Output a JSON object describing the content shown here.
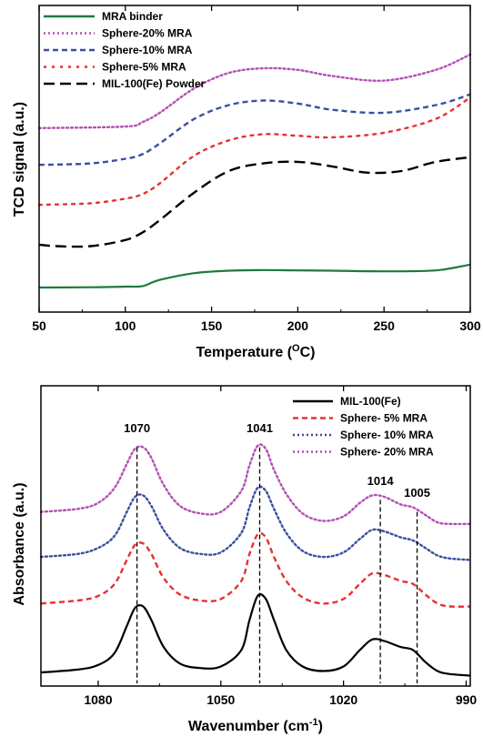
{
  "chart_data": [
    {
      "type": "line",
      "xlabel": "Temperature (",
      "xlabel_sup": "O",
      "xlabel_suffix": "C)",
      "ylabel": "TCD signal (a.u.)",
      "xlim": [
        50,
        300
      ],
      "ylim": [
        0,
        100
      ],
      "xticks": [
        "50",
        "100",
        "150",
        "200",
        "250",
        "300"
      ],
      "yticks_shown": false,
      "legend_position": "top-left",
      "series": [
        {
          "name": "MRA binder",
          "color": "#1f7a3a",
          "dash": "solid",
          "x": [
            50,
            80,
            100,
            110,
            120,
            140,
            160,
            180,
            200,
            220,
            250,
            280,
            300
          ],
          "y": [
            8,
            8.1,
            8.3,
            8.5,
            10.5,
            12.7,
            13.5,
            13.7,
            13.6,
            13.5,
            13.3,
            13.6,
            15.5
          ]
        },
        {
          "name": "Sphere-20% MRA",
          "color": "#b44fb4",
          "dash": "dotted",
          "x": [
            50,
            100,
            110,
            120,
            140,
            160,
            180,
            200,
            220,
            250,
            280,
            300
          ],
          "y": [
            60,
            60.5,
            62,
            65,
            73,
            78,
            79.5,
            79,
            77,
            75.5,
            79,
            84
          ]
        },
        {
          "name": "Sphere-10% MRA",
          "color": "#3a4fa0",
          "dash": "dashed",
          "x": [
            50,
            80,
            100,
            110,
            120,
            140,
            160,
            180,
            200,
            220,
            250,
            280,
            300
          ],
          "y": [
            48,
            48.5,
            50,
            51.5,
            55,
            63,
            67.5,
            69,
            68,
            66,
            65,
            67.5,
            71
          ]
        },
        {
          "name": "Sphere-5% MRA",
          "color": "#e83030",
          "dash": "dotted-wide",
          "x": [
            50,
            80,
            100,
            110,
            120,
            140,
            160,
            180,
            200,
            220,
            250,
            280,
            300
          ],
          "y": [
            35,
            35.5,
            37,
            38.5,
            42,
            51,
            56,
            58,
            57.5,
            57,
            58.5,
            63,
            70
          ]
        },
        {
          "name": "MIL-100(Fe) Powder",
          "color": "#000000",
          "dash": "long-dash",
          "x": [
            50,
            60,
            80,
            100,
            110,
            120,
            140,
            160,
            180,
            200,
            220,
            240,
            260,
            280,
            300
          ],
          "y": [
            22,
            21.5,
            21.5,
            23.5,
            26,
            30,
            39,
            46,
            48.5,
            49,
            47.5,
            45.5,
            46,
            49,
            50.5
          ]
        }
      ]
    },
    {
      "type": "line",
      "xlabel": "Wavenumber (cm",
      "xlabel_sup": "-1",
      "xlabel_suffix": ")",
      "ylabel": "Absorbance (a.u.)",
      "xlim": [
        1094,
        989
      ],
      "ylim": [
        0,
        100
      ],
      "xticks": [
        "1080",
        "1050",
        "1020",
        "990"
      ],
      "xtick_values": [
        1080,
        1050,
        1020,
        990
      ],
      "yticks_shown": false,
      "legend_position": "top-right",
      "annotations": [
        {
          "text": "1070",
          "x": 1070.5,
          "line_top": 79.5,
          "label_y": 84.5
        },
        {
          "text": "1041",
          "x": 1040.5,
          "line_top": 79.5,
          "label_y": 84.5
        },
        {
          "text": "1014",
          "x": 1011,
          "line_top": 62,
          "label_y": 67
        },
        {
          "text": "1005",
          "x": 1002,
          "line_top": 58,
          "label_y": 63
        }
      ],
      "series": [
        {
          "name": "MIL-100(Fe)",
          "color": "#000000",
          "dash": "solid",
          "x": [
            1094,
            1085,
            1080,
            1076,
            1073,
            1071,
            1069,
            1067,
            1064,
            1060,
            1055,
            1050,
            1045,
            1043,
            1041,
            1039,
            1037,
            1034,
            1030,
            1025,
            1020,
            1016,
            1013,
            1010,
            1006,
            1003,
            1000,
            997,
            994,
            989
          ],
          "y": [
            4.5,
            5.5,
            7,
            11,
            20,
            26,
            26.5,
            22,
            13,
            7.5,
            6,
            6.5,
            12,
            22,
            30,
            29,
            22,
            12,
            6.5,
            5,
            6.5,
            12,
            15.5,
            15,
            13,
            12,
            8,
            5,
            4,
            3.5
          ]
        },
        {
          "name": "Sphere- 5% MRA",
          "color": "#e83030",
          "dash": "dashed",
          "x": [
            1094,
            1085,
            1080,
            1076,
            1073,
            1071,
            1069,
            1067,
            1064,
            1060,
            1055,
            1050,
            1045,
            1043,
            1041,
            1039,
            1037,
            1034,
            1030,
            1025,
            1020,
            1016,
            1013,
            1010,
            1006,
            1003,
            1000,
            997,
            994,
            989
          ],
          "y": [
            27.5,
            28.5,
            30,
            34,
            42,
            47,
            47.5,
            44,
            36,
            30.5,
            28.5,
            29,
            35,
            44,
            50.5,
            49.5,
            43,
            35,
            29.5,
            27.5,
            29,
            34,
            37.5,
            37,
            35,
            34,
            30.5,
            27.5,
            26.5,
            26.5
          ]
        },
        {
          "name": "Sphere- 10% MRA",
          "color": "#3a4fa0",
          "dash": "dotted",
          "x": [
            1094,
            1085,
            1080,
            1076,
            1073,
            1071,
            1069,
            1067,
            1064,
            1060,
            1055,
            1050,
            1045,
            1043,
            1041,
            1039,
            1037,
            1034,
            1030,
            1025,
            1020,
            1016,
            1013,
            1010,
            1006,
            1003,
            1000,
            997,
            994,
            989
          ],
          "y": [
            43,
            44,
            46,
            50,
            58,
            63,
            63.5,
            60,
            52,
            46,
            44,
            44.5,
            51,
            59.5,
            66,
            65,
            59,
            51,
            45,
            43,
            44.5,
            49,
            52,
            51.5,
            49.5,
            48.5,
            46,
            43.5,
            42.5,
            42
          ]
        },
        {
          "name": "Sphere- 20% MRA",
          "color": "#b44fb4",
          "dash": "dotted",
          "x": [
            1094,
            1085,
            1080,
            1076,
            1073,
            1071,
            1069,
            1067,
            1064,
            1060,
            1055,
            1050,
            1045,
            1043,
            1041,
            1039,
            1037,
            1034,
            1030,
            1025,
            1020,
            1016,
            1013,
            1010,
            1006,
            1003,
            1000,
            997,
            994,
            989
          ],
          "y": [
            58,
            59,
            61,
            66,
            74,
            79,
            79.5,
            76,
            67,
            60,
            57.5,
            58,
            65,
            73.5,
            80,
            79,
            72,
            64,
            57.5,
            55,
            56.5,
            61,
            63.5,
            63,
            60.5,
            59.5,
            57,
            54.5,
            54,
            54
          ]
        }
      ]
    }
  ]
}
